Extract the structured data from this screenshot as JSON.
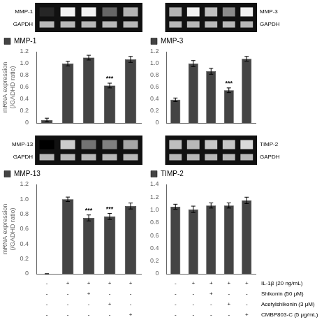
{
  "chart_data": [
    {
      "type": "bar",
      "categories": [
        null,
        null,
        null,
        null,
        null
      ],
      "series": [
        {
          "name": "MMP-1",
          "color": "#444444",
          "values": [
            0.05,
            1.0,
            1.1,
            0.63,
            1.07
          ],
          "errors": [
            0.03,
            0.04,
            0.04,
            0.04,
            0.05
          ]
        }
      ],
      "sig": [
        false,
        false,
        false,
        true,
        false
      ],
      "sig_label": "***",
      "ylabel": "mRNA expression\n(/GADHD ratio)",
      "ylim": [
        0,
        1.2
      ],
      "yticks": [
        0,
        0.2,
        0.4,
        0.6,
        0.8,
        {
          "value": 1.0,
          "label": "1.0"
        },
        1.2
      ],
      "grid": false,
      "legend": "upper left",
      "tick_labels": "y",
      "gel": {
        "labels": [
          "MMP-1",
          "GAPDH"
        ],
        "intensity": [
          [
            0.15,
            0.95,
            0.95,
            0.4,
            0.7
          ],
          [
            0.72,
            0.72,
            0.72,
            0.72,
            0.72
          ]
        ],
        "background": "#111111"
      }
    },
    {
      "type": "bar",
      "categories": [
        null,
        null,
        null,
        null,
        null
      ],
      "series": [
        {
          "name": "MMP-3",
          "color": "#444444",
          "values": [
            0.39,
            1.0,
            0.87,
            0.55,
            1.08
          ],
          "errors": [
            0.03,
            0.05,
            0.05,
            0.04,
            0.04
          ]
        }
      ],
      "sig": [
        false,
        false,
        false,
        true,
        false
      ],
      "sig_label": "***",
      "ylim": [
        0,
        1.2
      ],
      "yticks": [
        0,
        0.2,
        0.4,
        0.6,
        0.8,
        {
          "value": 1.0,
          "label": "1.0"
        },
        1.2
      ],
      "grid": false,
      "legend": "upper left",
      "tick_labels": "y",
      "gel": {
        "labels": [
          "MMP-3",
          "GAPDH"
        ],
        "intensity": [
          [
            0.7,
            0.95,
            0.75,
            0.55,
            0.95
          ],
          [
            0.72,
            0.72,
            0.72,
            0.72,
            0.72
          ]
        ],
        "background": "#111111"
      }
    },
    {
      "type": "bar",
      "categories": [
        null,
        null,
        null,
        null,
        null
      ],
      "series": [
        {
          "name": "MMP-13",
          "color": "#444444",
          "values": [
            0.0,
            1.0,
            0.75,
            0.77,
            0.91
          ],
          "errors": [
            0.0,
            0.03,
            0.04,
            0.04,
            0.04
          ]
        }
      ],
      "sig": [
        false,
        false,
        true,
        true,
        false
      ],
      "sig_label": "***",
      "ylabel": "mRNA expression\n(/GADHD ratio)",
      "ylim": [
        0,
        1.2
      ],
      "yticks": [
        0,
        0.2,
        0.4,
        0.6,
        0.8,
        {
          "value": 1.0,
          "label": "1.0"
        },
        1.2
      ],
      "grid": false,
      "legend": "upper left",
      "tick_labels": "y",
      "gel": {
        "labels": [
          "MMP-13",
          "GAPDH"
        ],
        "intensity": [
          [
            0.0,
            0.8,
            0.45,
            0.5,
            0.65
          ],
          [
            0.72,
            0.72,
            0.72,
            0.72,
            0.72
          ]
        ],
        "background": "#111111"
      },
      "treatment_signs": [
        [
          "-",
          "+",
          "+",
          "+",
          "+"
        ],
        [
          "-",
          "-",
          "+",
          "-",
          "-"
        ],
        [
          "-",
          "-",
          "-",
          "+",
          "-"
        ],
        [
          "-",
          "-",
          "-",
          "-",
          "+"
        ]
      ]
    },
    {
      "type": "bar",
      "categories": [
        null,
        null,
        null,
        null,
        null
      ],
      "series": [
        {
          "name": "TIMP-2",
          "color": "#444444",
          "values": [
            1.05,
            1.01,
            1.07,
            1.07,
            1.15
          ],
          "errors": [
            0.04,
            0.05,
            0.04,
            0.04,
            0.05
          ]
        }
      ],
      "sig": [
        false,
        false,
        false,
        false,
        false
      ],
      "sig_label": "***",
      "ylim": [
        0,
        1.4
      ],
      "yticks": [
        0,
        0.2,
        0.4,
        0.6,
        0.8,
        {
          "value": 1.0,
          "label": "1.0"
        },
        1.2,
        1.4
      ],
      "grid": false,
      "legend": "upper left",
      "tick_labels": "y",
      "gel": {
        "labels": [
          "TIMP-2",
          "GAPDH"
        ],
        "intensity": [
          [
            0.75,
            0.72,
            0.78,
            0.78,
            0.85
          ],
          [
            0.72,
            0.72,
            0.72,
            0.72,
            0.72
          ]
        ],
        "background": "#111111"
      },
      "treatment_signs": [
        [
          "-",
          "+",
          "+",
          "+",
          "+"
        ],
        [
          "-",
          "-",
          "+",
          "-",
          "-"
        ],
        [
          "-",
          "-",
          "-",
          "+",
          "-"
        ],
        [
          "-",
          "-",
          "-",
          "-",
          "+"
        ]
      ],
      "treatment_labels": [
        "IL-1β (20 ng/mL)",
        "Shikonin (50 μM)",
        "Acetylshikonin (3 μM)",
        "CMBP803-C (5 μg/mL)"
      ]
    }
  ]
}
